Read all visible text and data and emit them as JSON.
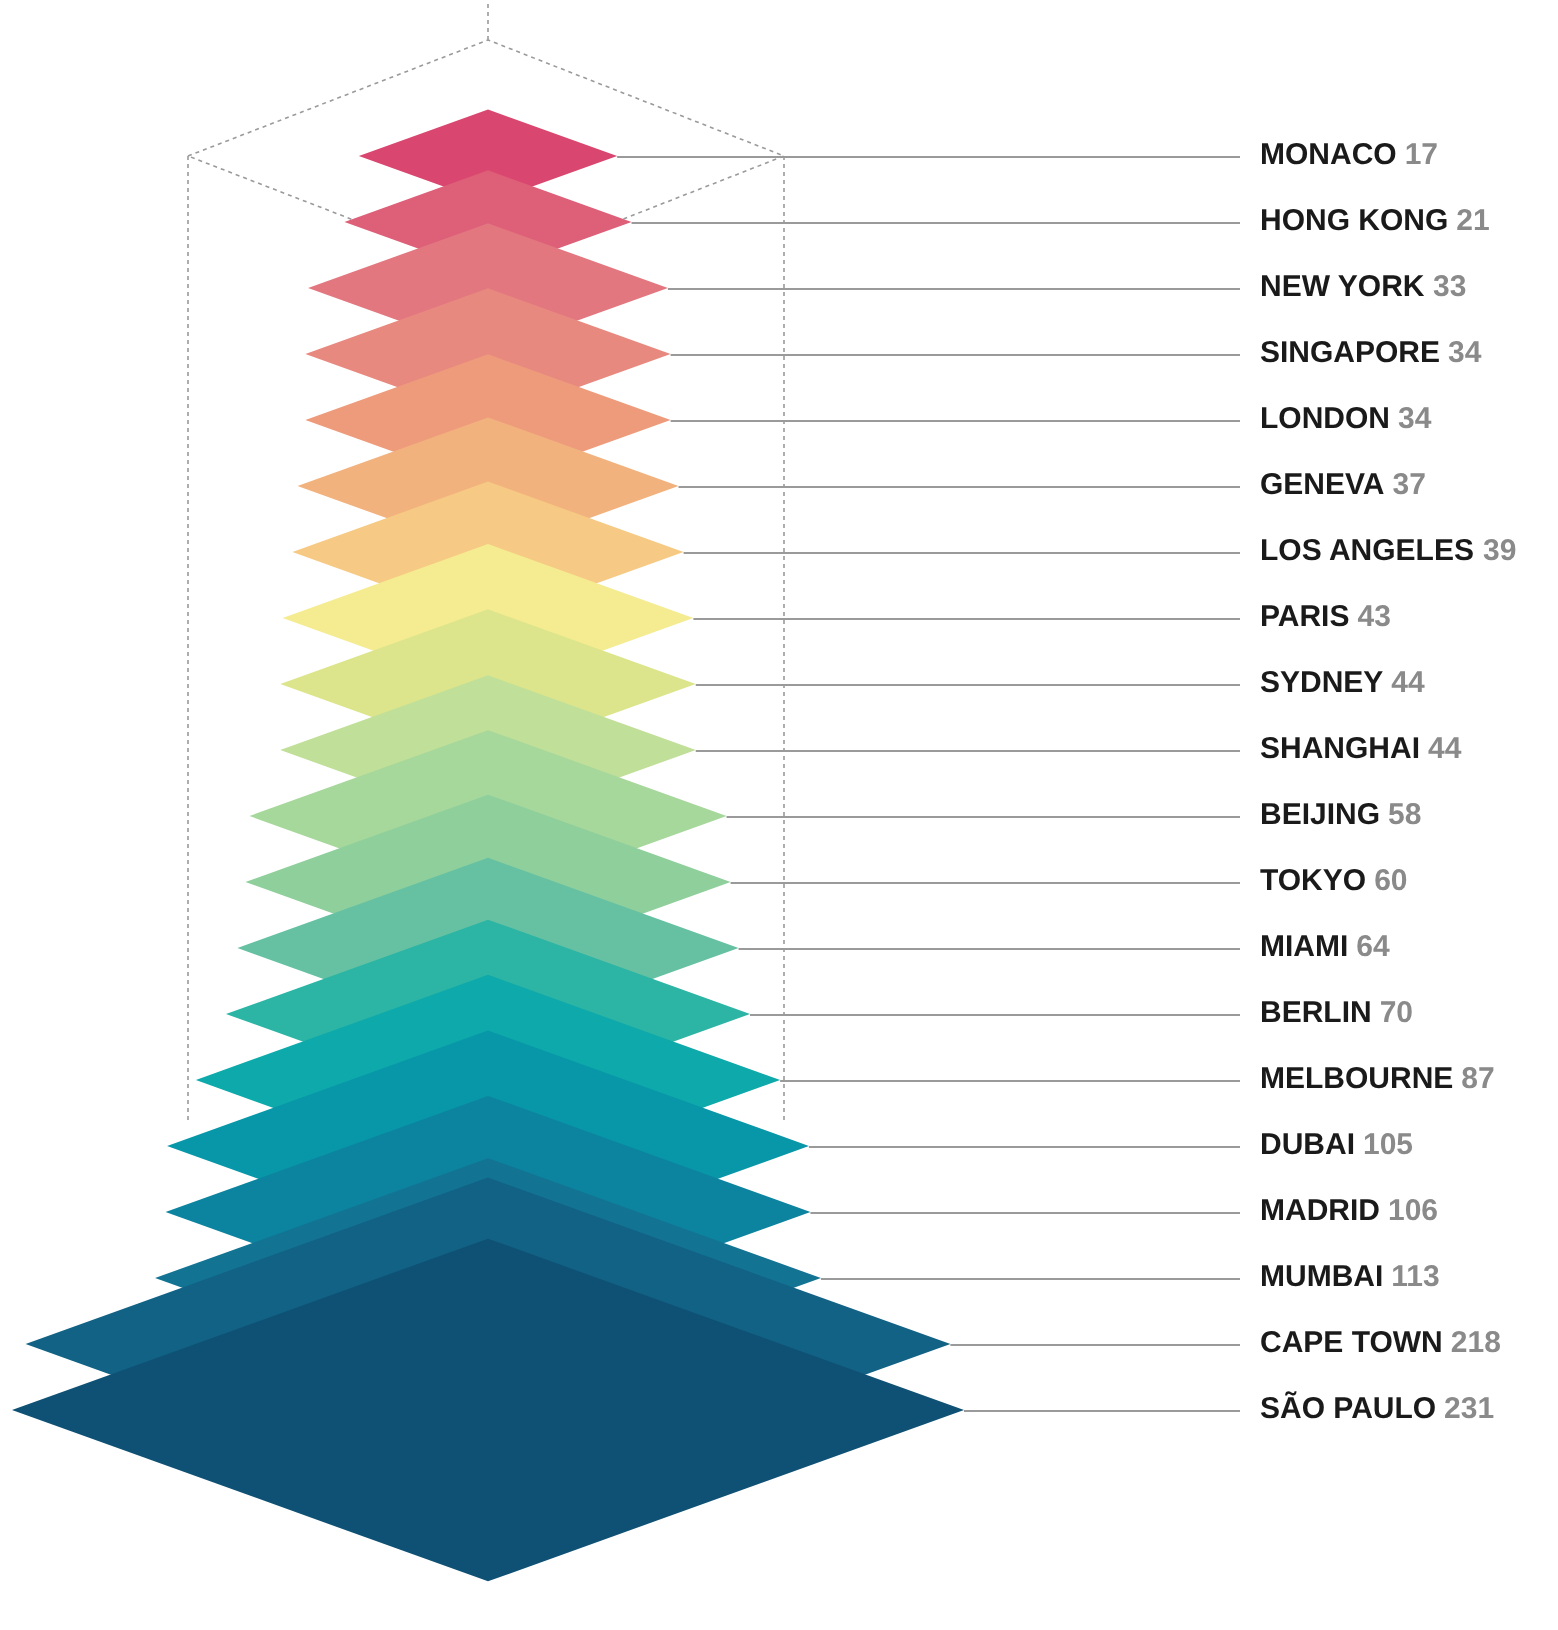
{
  "chart_data": {
    "type": "other",
    "categories": [
      "MONACO",
      "HONG KONG",
      "NEW YORK",
      "SINGAPORE",
      "LONDON",
      "GENEVA",
      "LOS ANGELES",
      "PARIS",
      "SYDNEY",
      "SHANGHAI",
      "BEIJING",
      "TOKYO",
      "MIAMI",
      "BERLIN",
      "MELBOURNE",
      "DUBAI",
      "MADRID",
      "MUMBAI",
      "CAPE TOWN",
      "SÃO PAULO"
    ],
    "values": [
      17,
      21,
      33,
      34,
      34,
      37,
      39,
      43,
      44,
      44,
      58,
      60,
      64,
      70,
      87,
      105,
      106,
      113,
      218,
      231
    ],
    "colors": [
      "#d9466f",
      "#dd5f78",
      "#e27780",
      "#e8897f",
      "#ee9b7c",
      "#f2b27e",
      "#f6ca84",
      "#f5ec92",
      "#dde58c",
      "#c0df98",
      "#a6d79b",
      "#8ecf9c",
      "#66c1a3",
      "#2cb5a5",
      "#0ea9aa",
      "#0897a8",
      "#0c84a0",
      "#137393",
      "#116285",
      "#0f5174"
    ],
    "data_labels": true
  }
}
